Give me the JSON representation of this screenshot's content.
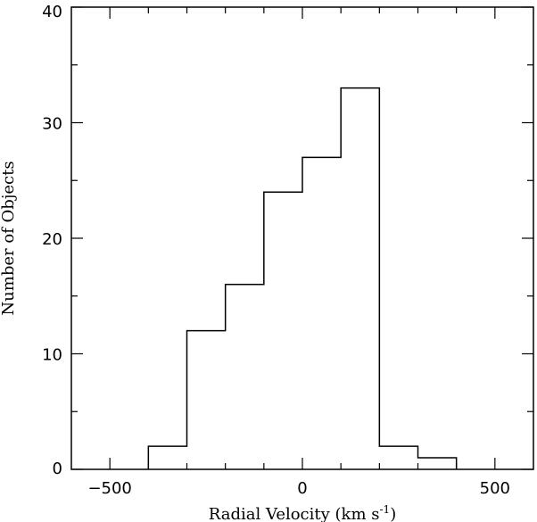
{
  "chart_data": {
    "type": "bar",
    "histogram": true,
    "title": "",
    "xlabel": "Radial Velocity (km s",
    "xlabel_unit_sup": "-1",
    "xlabel_close": ")",
    "ylabel": "Number of Objects",
    "xlim": [
      -600,
      600
    ],
    "ylim": [
      0,
      40
    ],
    "x_major_ticks": [
      -500,
      0,
      500
    ],
    "x_minor_ticks": [
      -400,
      -300,
      -200,
      -100,
      100,
      200,
      300,
      400
    ],
    "y_major_ticks": [
      0,
      10,
      20,
      30,
      40
    ],
    "y_minor_ticks": [
      5,
      15,
      25,
      35
    ],
    "x_tick_labels": [
      "−500",
      "0",
      "500"
    ],
    "y_tick_labels": [
      "0",
      "10",
      "20",
      "30",
      "40"
    ],
    "bin_edges": [
      -400,
      -300,
      -200,
      -100,
      0,
      100,
      200,
      300,
      400
    ],
    "values": [
      2,
      12,
      16,
      24,
      27,
      33,
      2,
      1
    ],
    "grid": false,
    "legend": "none"
  }
}
